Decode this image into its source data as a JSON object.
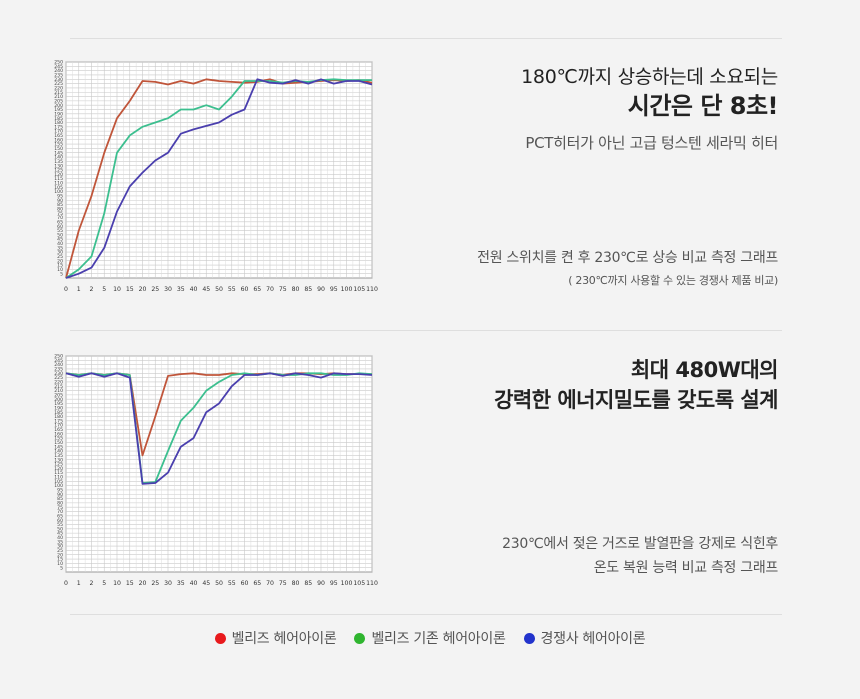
{
  "section1": {
    "title_line1": "180℃까지 상승하는데 소요되는",
    "title_line2": "시간은 단 8초!",
    "subtitle": "PCT히터가 아닌 고급 텅스텐 세라믹 히터",
    "desc": "전원 스위치를 켠 후 230℃로 상승 비교 측정 그래프",
    "note": "( 230℃까지 사용할 수 있는 경쟁사 제품 비교)"
  },
  "section2": {
    "title_line1": "최대 480W대의",
    "title_line2": "강력한 에너지밀도를 갖도록 설계",
    "desc_line1": "230℃에서 젖은 거즈로 발열판을 강제로 식힌후",
    "desc_line2": "온도 복원 능력 비교 측정 그래프"
  },
  "legend": [
    {
      "label": "벨리즈 헤어아이론",
      "color": "#e8191c"
    },
    {
      "label": "벨리즈 기존 헤어아이론",
      "color": "#2fb52f"
    },
    {
      "label": "경쟁사 헤어아이론",
      "color": "#2233aa"
    }
  ],
  "chart_data": [
    {
      "type": "line",
      "x": [
        0,
        1,
        2,
        5,
        10,
        15,
        20,
        25,
        30,
        35,
        40,
        45,
        50,
        55,
        60,
        65,
        70,
        75,
        80,
        85,
        90,
        95,
        100,
        105,
        110
      ],
      "xticks": [
        "0",
        "1",
        "2",
        "5",
        "10",
        "15",
        "20",
        "25",
        "30",
        "35",
        "40",
        "45",
        "50",
        "55",
        "60",
        "65",
        "70",
        "75",
        "80",
        "85",
        "90",
        "95",
        "100",
        "105",
        "110"
      ],
      "ylim": [
        0,
        250
      ],
      "yticks": [
        5,
        10,
        15,
        20,
        25,
        30,
        35,
        40,
        45,
        50,
        55,
        60,
        65,
        70,
        75,
        80,
        85,
        90,
        95,
        100,
        105,
        110,
        115,
        120,
        125,
        130,
        135,
        140,
        145,
        150,
        155,
        160,
        165,
        170,
        175,
        180,
        185,
        190,
        195,
        200,
        205,
        210,
        215,
        220,
        225,
        230,
        235,
        240,
        245,
        250
      ],
      "grid": true,
      "series": [
        {
          "color": "#c0553a",
          "values": [
            0,
            55,
            95,
            145,
            185,
            205,
            228,
            227,
            224,
            228,
            225,
            230,
            228,
            227,
            226,
            227,
            230,
            225,
            226,
            227,
            228,
            229,
            228,
            229,
            226
          ]
        },
        {
          "color": "#3cbf8f",
          "values": [
            0,
            10,
            25,
            75,
            145,
            165,
            175,
            180,
            185,
            195,
            195,
            200,
            195,
            210,
            228,
            228,
            228,
            226,
            228,
            227,
            229,
            230,
            229,
            229,
            229
          ]
        },
        {
          "color": "#4a3fae",
          "values": [
            0,
            5,
            12,
            35,
            77,
            106,
            122,
            136,
            145,
            167,
            172,
            176,
            180,
            189,
            195,
            230,
            226,
            225,
            229,
            225,
            230,
            225,
            228,
            228,
            224
          ]
        }
      ]
    },
    {
      "type": "line",
      "x": [
        0,
        1,
        2,
        5,
        10,
        15,
        20,
        25,
        30,
        35,
        40,
        45,
        50,
        55,
        60,
        65,
        70,
        75,
        80,
        85,
        90,
        95,
        100,
        105,
        110
      ],
      "xticks": [
        "0",
        "1",
        "2",
        "5",
        "10",
        "15",
        "20",
        "25",
        "30",
        "35",
        "40",
        "45",
        "50",
        "55",
        "60",
        "65",
        "70",
        "75",
        "80",
        "85",
        "90",
        "95",
        "100",
        "105",
        "110"
      ],
      "ylim": [
        0,
        250
      ],
      "yticks": [
        5,
        10,
        15,
        20,
        25,
        30,
        35,
        40,
        45,
        50,
        55,
        60,
        65,
        70,
        75,
        80,
        85,
        90,
        95,
        100,
        105,
        110,
        115,
        120,
        125,
        130,
        135,
        140,
        145,
        150,
        155,
        160,
        165,
        170,
        175,
        180,
        185,
        190,
        195,
        200,
        205,
        210,
        215,
        220,
        225,
        230,
        235,
        240,
        245,
        250
      ],
      "grid": true,
      "series": [
        {
          "color": "#c0553a",
          "values": [
            230,
            228,
            230,
            228,
            230,
            228,
            135,
            180,
            227,
            229,
            230,
            228,
            228,
            230,
            229,
            229,
            230,
            228,
            230,
            230,
            229,
            230,
            229,
            229,
            229
          ]
        },
        {
          "color": "#3cbf8f",
          "values": [
            230,
            228,
            230,
            228,
            230,
            228,
            103,
            104,
            140,
            175,
            190,
            210,
            220,
            228,
            230,
            228,
            230,
            228,
            228,
            230,
            230,
            228,
            228,
            230,
            229
          ]
        },
        {
          "color": "#4a3fae",
          "values": [
            230,
            226,
            230,
            226,
            230,
            225,
            102,
            103,
            115,
            145,
            155,
            185,
            195,
            215,
            228,
            228,
            230,
            227,
            230,
            228,
            225,
            230,
            229,
            229,
            228
          ]
        }
      ]
    }
  ]
}
